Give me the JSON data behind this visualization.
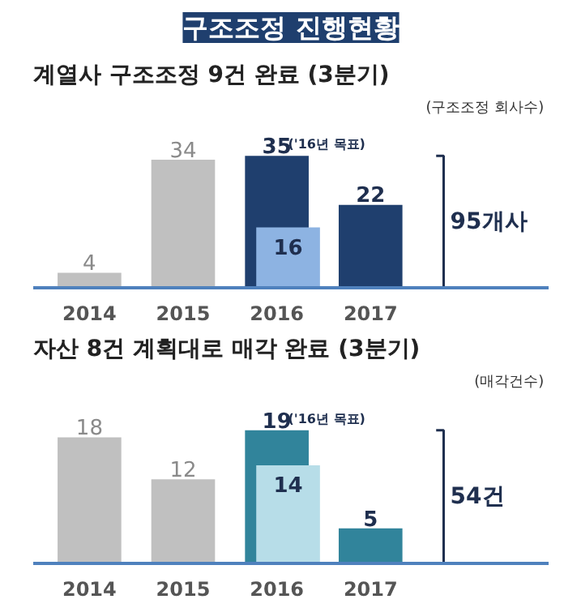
{
  "chart_data": [
    {
      "type": "bar",
      "title": "구조조정 진행현황",
      "subtitle": "계열사 구조조정 9건 완료 (3분기)",
      "ylabel": "(구조조정 회사수)",
      "categories": [
        "2014",
        "2015",
        "2016",
        "2017"
      ],
      "data_labels": true,
      "series": [
        {
          "colors": [
            "#c0c0c0",
            "#c0c0c0",
            "#1f3f6e",
            "#1f3f6e"
          ],
          "values": [
            4,
            34,
            35,
            22
          ]
        },
        {
          "color": "#8db3e2",
          "values": [
            null,
            null,
            16,
            null
          ]
        }
      ],
      "annotations": [
        {
          "text": "('16년 목표)",
          "x": "2016",
          "y": 35
        },
        "95개사"
      ]
    },
    {
      "type": "bar",
      "title": "자산 8건 계획대로 매각 완료 (3분기)",
      "ylabel": "(매각건수)",
      "categories": [
        "2014",
        "2015",
        "2016",
        "2017"
      ],
      "data_labels": true,
      "series": [
        {
          "colors": [
            "#c0c0c0",
            "#c0c0c0",
            "#31849b",
            "#31849b"
          ],
          "values": [
            18,
            12,
            19,
            5
          ]
        },
        {
          "color": "#b7dde8",
          "values": [
            null,
            null,
            14,
            null
          ]
        }
      ],
      "annotations": [
        {
          "text": "('16년 목표)",
          "x": "2016",
          "y": 19
        },
        "54건"
      ]
    }
  ]
}
